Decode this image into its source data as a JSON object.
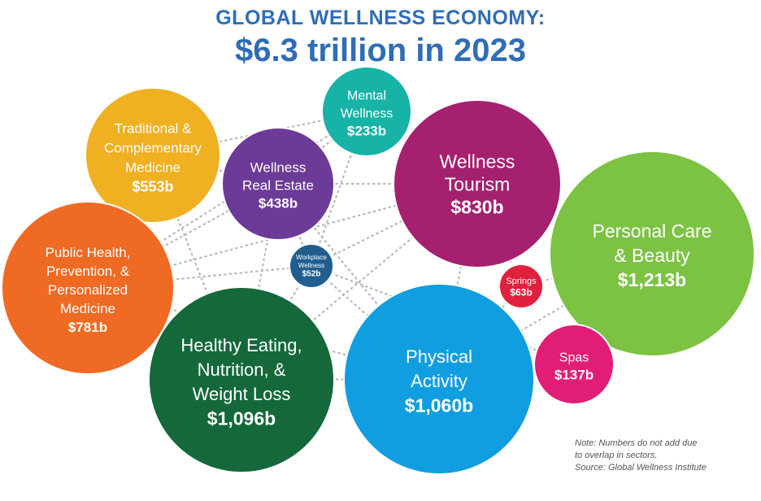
{
  "header": {
    "title_line1": "GLOBAL WELLNESS ECONOMY:",
    "title_line2": "$6.3 trillion in 2023"
  },
  "note": {
    "line1": "Note: Numbers do not add due",
    "line2": "to overlap in sectors.",
    "line3": "Source: Global Wellness Institute"
  },
  "chart_data": {
    "type": "bubble",
    "title": "GLOBAL WELLNESS ECONOMY: $6.3 trillion in 2023",
    "unit": "billion USD",
    "grid": false,
    "series": [
      {
        "name_lines": [
          "Traditional &",
          "Complementary",
          "Medicine"
        ],
        "label": "$553b",
        "value": 553,
        "color": "#efb021"
      },
      {
        "name_lines": [
          "Wellness",
          "Real Estate"
        ],
        "label": "$438b",
        "value": 438,
        "color": "#6c3a97"
      },
      {
        "name_lines": [
          "Mental",
          "Wellness"
        ],
        "label": "$233b",
        "value": 233,
        "color": "#16b3a6"
      },
      {
        "name_lines": [
          "Wellness",
          "Tourism"
        ],
        "label": "$830b",
        "value": 830,
        "color": "#a5206f"
      },
      {
        "name_lines": [
          "Personal Care",
          "& Beauty"
        ],
        "label": "$1,213b",
        "value": 1213,
        "color": "#7cc243"
      },
      {
        "name_lines": [
          "Public Health,",
          "Prevention, &",
          "Personalized",
          "Medicine"
        ],
        "label": "$781b",
        "value": 781,
        "color": "#ef6a23"
      },
      {
        "name_lines": [
          "Workplace",
          "Wellness"
        ],
        "label": "$52b",
        "value": 52,
        "color": "#215e8e"
      },
      {
        "name_lines": [
          "Springs"
        ],
        "label": "$63b",
        "value": 63,
        "color": "#e0203f"
      },
      {
        "name_lines": [
          "Healthy Eating,",
          "Nutrition, &",
          "Weight Loss"
        ],
        "label": "$1,096b",
        "value": 1096,
        "color": "#14683a"
      },
      {
        "name_lines": [
          "Physical",
          "Activity"
        ],
        "label": "$1,060b",
        "value": 1060,
        "color": "#109ee1"
      },
      {
        "name_lines": [
          "Spas"
        ],
        "label": "$137b",
        "value": 137,
        "color": "#e11d76"
      }
    ]
  }
}
